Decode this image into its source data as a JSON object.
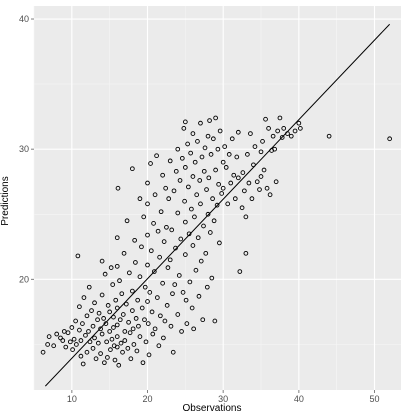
{
  "chart_data": {
    "type": "scatter",
    "xlabel": "Observations",
    "ylabel": "Predictions",
    "xlim": [
      5,
      53.5
    ],
    "ylim": [
      11.5,
      41
    ],
    "x_ticks": [
      10,
      20,
      30,
      40,
      50
    ],
    "y_ticks": [
      20,
      30,
      40
    ],
    "grid": true,
    "background_color": "#ebebeb",
    "grid_color": "#ffffff",
    "point_color": "#000000",
    "line_color": "#000000",
    "reference_line": {
      "x": [
        6.5,
        52
      ],
      "y": [
        11.8,
        39.6
      ]
    },
    "points": [
      [
        6.2,
        14.4
      ],
      [
        6.8,
        15.0
      ],
      [
        7.0,
        15.6
      ],
      [
        7.6,
        14.9
      ],
      [
        8.0,
        15.8
      ],
      [
        8.5,
        15.5
      ],
      [
        8.8,
        15.3
      ],
      [
        9.0,
        16.0
      ],
      [
        9.2,
        14.8
      ],
      [
        9.5,
        15.9
      ],
      [
        9.8,
        15.2
      ],
      [
        10.0,
        16.3
      ],
      [
        10.1,
        14.6
      ],
      [
        10.3,
        15.4
      ],
      [
        10.5,
        16.8
      ],
      [
        10.6,
        15.0
      ],
      [
        10.8,
        21.8
      ],
      [
        11.0,
        17.9
      ],
      [
        11.0,
        16.1
      ],
      [
        11.2,
        15.3
      ],
      [
        11.2,
        14.1
      ],
      [
        11.4,
        16.6
      ],
      [
        11.5,
        13.5
      ],
      [
        11.6,
        18.6
      ],
      [
        11.8,
        15.7
      ],
      [
        12.0,
        17.2
      ],
      [
        12.0,
        14.4
      ],
      [
        12.2,
        16.0
      ],
      [
        12.3,
        19.4
      ],
      [
        12.4,
        15.2
      ],
      [
        12.6,
        17.6
      ],
      [
        12.8,
        16.4
      ],
      [
        12.8,
        14.7
      ],
      [
        13.0,
        18.2
      ],
      [
        13.0,
        15.5
      ],
      [
        13.2,
        13.9
      ],
      [
        13.4,
        16.9
      ],
      [
        13.5,
        15.1
      ],
      [
        13.6,
        17.4
      ],
      [
        13.8,
        16.2
      ],
      [
        13.8,
        14.3
      ],
      [
        14.0,
        21.4
      ],
      [
        14.0,
        18.8
      ],
      [
        14.0,
        15.8
      ],
      [
        14.2,
        17.0
      ],
      [
        14.3,
        13.6
      ],
      [
        14.4,
        20.4
      ],
      [
        14.5,
        16.6
      ],
      [
        14.6,
        15.2
      ],
      [
        14.7,
        14.0
      ],
      [
        14.8,
        18.0
      ],
      [
        15.0,
        17.5
      ],
      [
        15.0,
        16.0
      ],
      [
        15.1,
        14.6
      ],
      [
        15.2,
        20.9
      ],
      [
        15.3,
        15.4
      ],
      [
        15.4,
        19.6
      ],
      [
        15.5,
        17.1
      ],
      [
        15.5,
        16.3
      ],
      [
        15.6,
        14.9
      ],
      [
        15.7,
        13.8
      ],
      [
        15.8,
        18.4
      ],
      [
        16.0,
        23.2
      ],
      [
        16.0,
        21.0
      ],
      [
        16.0,
        17.8
      ],
      [
        16.0,
        16.5
      ],
      [
        16.0,
        15.6
      ],
      [
        16.0,
        14.8
      ],
      [
        16.1,
        27.0
      ],
      [
        16.2,
        13.4
      ],
      [
        16.3,
        19.9
      ],
      [
        16.4,
        16.9
      ],
      [
        16.5,
        15.1
      ],
      [
        16.6,
        18.9
      ],
      [
        16.7,
        14.4
      ],
      [
        16.8,
        17.3
      ],
      [
        16.9,
        22.0
      ],
      [
        17.0,
        16.0
      ],
      [
        17.0,
        15.3
      ],
      [
        17.2,
        18.1
      ],
      [
        17.3,
        24.5
      ],
      [
        17.4,
        14.7
      ],
      [
        17.5,
        16.7
      ],
      [
        17.6,
        20.5
      ],
      [
        17.7,
        15.9
      ],
      [
        17.8,
        13.9
      ],
      [
        18.0,
        28.5
      ],
      [
        18.0,
        19.1
      ],
      [
        18.0,
        17.6
      ],
      [
        18.1,
        16.2
      ],
      [
        18.2,
        15.0
      ],
      [
        18.3,
        23.0
      ],
      [
        18.4,
        21.3
      ],
      [
        18.5,
        17.0
      ],
      [
        18.6,
        14.5
      ],
      [
        18.7,
        18.4
      ],
      [
        18.8,
        16.4
      ],
      [
        19.0,
        26.2
      ],
      [
        19.0,
        20.2
      ],
      [
        19.0,
        15.6
      ],
      [
        19.2,
        22.5
      ],
      [
        19.3,
        17.8
      ],
      [
        19.4,
        13.6
      ],
      [
        19.5,
        24.8
      ],
      [
        19.6,
        16.9
      ],
      [
        19.7,
        19.4
      ],
      [
        19.8,
        15.2
      ],
      [
        20.0,
        27.4
      ],
      [
        20.0,
        25.8
      ],
      [
        20.0,
        23.4
      ],
      [
        20.0,
        21.1
      ],
      [
        20.0,
        18.3
      ],
      [
        20.1,
        16.6
      ],
      [
        20.2,
        14.2
      ],
      [
        20.3,
        19.0
      ],
      [
        20.4,
        28.9
      ],
      [
        20.5,
        22.2
      ],
      [
        20.6,
        17.5
      ],
      [
        20.7,
        15.8
      ],
      [
        20.8,
        24.3
      ],
      [
        20.9,
        20.6
      ],
      [
        21.0,
        26.5
      ],
      [
        21.0,
        16.2
      ],
      [
        21.2,
        29.5
      ],
      [
        21.3,
        18.6
      ],
      [
        21.4,
        23.7
      ],
      [
        21.5,
        14.9
      ],
      [
        21.6,
        21.7
      ],
      [
        21.7,
        17.2
      ],
      [
        21.8,
        25.2
      ],
      [
        22.0,
        28.0
      ],
      [
        22.0,
        19.7
      ],
      [
        22.1,
        15.5
      ],
      [
        22.2,
        22.9
      ],
      [
        22.3,
        16.8
      ],
      [
        22.4,
        27.0
      ],
      [
        22.5,
        24.0
      ],
      [
        22.6,
        18.0
      ],
      [
        22.7,
        20.9
      ],
      [
        22.8,
        26.2
      ],
      [
        23.0,
        29.1
      ],
      [
        23.0,
        21.5
      ],
      [
        23.1,
        16.4
      ],
      [
        23.2,
        23.8
      ],
      [
        23.3,
        18.9
      ],
      [
        23.4,
        14.4
      ],
      [
        23.5,
        26.8
      ],
      [
        23.6,
        19.6
      ],
      [
        23.7,
        22.4
      ],
      [
        23.8,
        28.3
      ],
      [
        24.0,
        30.0
      ],
      [
        24.0,
        25.1
      ],
      [
        24.0,
        17.3
      ],
      [
        24.2,
        20.3
      ],
      [
        24.3,
        27.6
      ],
      [
        24.4,
        23.1
      ],
      [
        24.5,
        16.0
      ],
      [
        24.6,
        29.3
      ],
      [
        24.7,
        19.0
      ],
      [
        24.8,
        31.6
      ],
      [
        24.9,
        26.0
      ],
      [
        25.0,
        32.1
      ],
      [
        25.0,
        28.6
      ],
      [
        25.0,
        24.4
      ],
      [
        25.0,
        21.9
      ],
      [
        25.1,
        18.4
      ],
      [
        25.2,
        16.6
      ],
      [
        25.3,
        30.4
      ],
      [
        25.4,
        27.1
      ],
      [
        25.5,
        23.5
      ],
      [
        25.6,
        19.8
      ],
      [
        25.7,
        29.7
      ],
      [
        25.8,
        25.4
      ],
      [
        25.9,
        17.8
      ],
      [
        26.0,
        31.2
      ],
      [
        26.0,
        27.9
      ],
      [
        26.0,
        22.6
      ],
      [
        26.1,
        16.2
      ],
      [
        26.2,
        24.8
      ],
      [
        26.3,
        29.0
      ],
      [
        26.4,
        20.7
      ],
      [
        26.5,
        26.5
      ],
      [
        26.6,
        30.6
      ],
      [
        26.7,
        23.2
      ],
      [
        26.8,
        18.7
      ],
      [
        26.9,
        27.6
      ],
      [
        27.0,
        32.0
      ],
      [
        27.0,
        25.8
      ],
      [
        27.1,
        21.4
      ],
      [
        27.2,
        29.4
      ],
      [
        27.3,
        16.9
      ],
      [
        27.4,
        24.1
      ],
      [
        27.5,
        28.3
      ],
      [
        27.6,
        30.1
      ],
      [
        27.7,
        22.0
      ],
      [
        27.8,
        26.9
      ],
      [
        27.9,
        19.4
      ],
      [
        28.0,
        31.0
      ],
      [
        28.0,
        25.0
      ],
      [
        28.1,
        27.8
      ],
      [
        28.2,
        32.2
      ],
      [
        28.3,
        23.6
      ],
      [
        28.4,
        29.6
      ],
      [
        28.5,
        20.1
      ],
      [
        28.6,
        26.2
      ],
      [
        28.7,
        30.8
      ],
      [
        28.8,
        24.5
      ],
      [
        28.9,
        16.8
      ],
      [
        29.0,
        32.4
      ],
      [
        29.0,
        28.4
      ],
      [
        29.2,
        25.7
      ],
      [
        29.3,
        30.0
      ],
      [
        29.4,
        27.3
      ],
      [
        29.5,
        22.8
      ],
      [
        29.6,
        31.4
      ],
      [
        29.8,
        26.6
      ],
      [
        30.0,
        29.0
      ],
      [
        30.0,
        27.0
      ],
      [
        30.2,
        30.2
      ],
      [
        30.4,
        28.6
      ],
      [
        30.6,
        25.8
      ],
      [
        30.8,
        29.6
      ],
      [
        31.0,
        27.4
      ],
      [
        31.2,
        30.8
      ],
      [
        31.4,
        28.0
      ],
      [
        31.6,
        26.2
      ],
      [
        31.8,
        29.4
      ],
      [
        32.0,
        31.3
      ],
      [
        32.0,
        27.8
      ],
      [
        32.2,
        20.6
      ],
      [
        32.5,
        25.5
      ],
      [
        32.6,
        28.2
      ],
      [
        32.8,
        26.8
      ],
      [
        33.0,
        22.0
      ],
      [
        33.0,
        24.8
      ],
      [
        33.2,
        29.6
      ],
      [
        33.4,
        27.4
      ],
      [
        33.6,
        31.2
      ],
      [
        33.8,
        26.2
      ],
      [
        34.0,
        28.8
      ],
      [
        34.2,
        30.2
      ],
      [
        34.5,
        27.5
      ],
      [
        34.8,
        26.9
      ],
      [
        35.0,
        29.8
      ],
      [
        35.0,
        27.9
      ],
      [
        35.2,
        30.6
      ],
      [
        35.4,
        28.4
      ],
      [
        35.6,
        32.3
      ],
      [
        35.8,
        27.0
      ],
      [
        36.0,
        31.6
      ],
      [
        36.2,
        26.5
      ],
      [
        36.4,
        29.9
      ],
      [
        36.6,
        31.0
      ],
      [
        36.8,
        30.0
      ],
      [
        37.0,
        27.5
      ],
      [
        37.2,
        31.4
      ],
      [
        37.5,
        32.4
      ],
      [
        37.8,
        30.9
      ],
      [
        38.0,
        31.6
      ],
      [
        38.5,
        31.2
      ],
      [
        39.0,
        31.0
      ],
      [
        39.5,
        31.4
      ],
      [
        40.0,
        32.0
      ],
      [
        40.2,
        31.6
      ],
      [
        44.0,
        31.0
      ],
      [
        52.0,
        30.8
      ]
    ]
  }
}
